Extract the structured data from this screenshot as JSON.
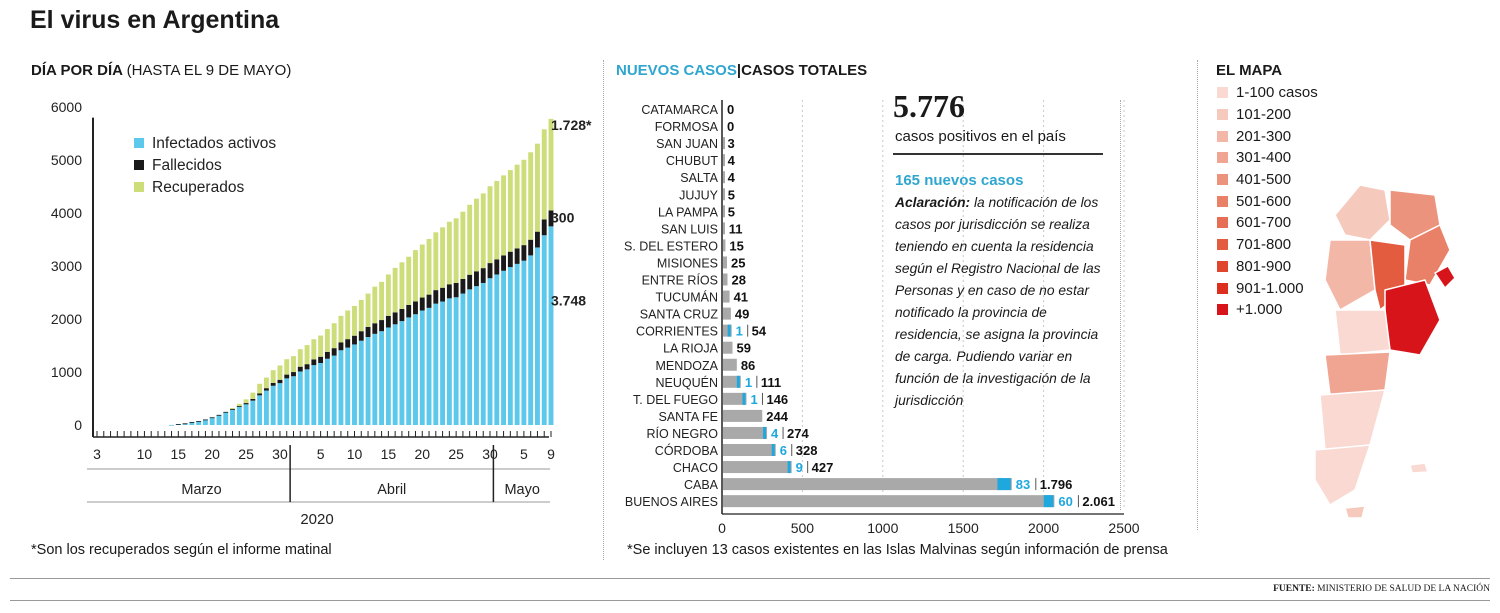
{
  "title": "El virus en Argentina",
  "panel1": {
    "title_bold": "DÍA POR DÍA",
    "title_normal": "(HASTA EL 9 DE MAYO)",
    "footnote": "*Son los recuperados según el informe matinal"
  },
  "panel2": {
    "title_new": "NUEVOS CASOS",
    "title_sep": "|",
    "title_total": "CASOS TOTALES",
    "big_number": "5.776",
    "big_label": "casos positivos en el país",
    "new_cases": "165 nuevos casos",
    "note_bold": "Aclaración:",
    "note_text": " la notificación de los casos por jurisdicción se realiza teniendo en cuenta la residencia según el Registro Nacional de las Personas y en caso de no estar notificado la provincia de residencia, se asigna la provincia de carga. Pudiendo variar en función de la investigación de la jurisdicción",
    "footnote": "*Se incluyen 13 casos existentes en las Islas Malvinas según información de prensa"
  },
  "panel3": {
    "title": "EL MAPA",
    "legend": [
      {
        "label": "1-100 casos",
        "color": "#f9d9d2"
      },
      {
        "label": "101-200",
        "color": "#f6c9bd"
      },
      {
        "label": "201-300",
        "color": "#f3b7a8"
      },
      {
        "label": "301-400",
        "color": "#efa592"
      },
      {
        "label": "401-500",
        "color": "#ec937d"
      },
      {
        "label": "501-600",
        "color": "#e98168"
      },
      {
        "label": "601-700",
        "color": "#e66e54"
      },
      {
        "label": "701-800",
        "color": "#e35c40"
      },
      {
        "label": "801-900",
        "color": "#e0452e"
      },
      {
        "label": "901-1.000",
        "color": "#dd2f1e"
      },
      {
        "label": "+1.000",
        "color": "#d8141b"
      }
    ]
  },
  "source_label": "FUENTE:",
  "source_text": "MINISTERIO DE SALUD DE LA NACIÓN",
  "colors": {
    "infected": "#5bc8ec",
    "deaths": "#1a1a1a",
    "recovered": "#cddd7a",
    "new_cases": "#1ea8de",
    "total_cases": "#a9a9a9",
    "accent": "#2fa6cf"
  },
  "chart_data": [
    {
      "type": "bar",
      "stacked": true,
      "x_start": "2020-03-03",
      "x_end": "2020-05-09",
      "x_tick_labels": [
        "3",
        "10",
        "15",
        "20",
        "25",
        "30",
        "5",
        "10",
        "15",
        "20",
        "25",
        "30",
        "5",
        "9"
      ],
      "month_labels": [
        "Marzo",
        "Abril",
        "Mayo"
      ],
      "year_label": "2020",
      "ylim": [
        0,
        6000
      ],
      "y_ticks": [
        0,
        1000,
        2000,
        3000,
        4000,
        5000,
        6000
      ],
      "series": [
        {
          "name": "Infectados activos",
          "values": [
            0,
            0,
            0,
            0,
            0,
            0,
            0,
            0,
            0,
            0,
            0,
            2,
            17,
            29,
            55,
            70,
            100,
            140,
            185,
            240,
            290,
            340,
            390,
            460,
            560,
            650,
            740,
            790,
            880,
            920,
            1010,
            1050,
            1130,
            1170,
            1250,
            1310,
            1410,
            1460,
            1520,
            1590,
            1660,
            1720,
            1770,
            1840,
            1900,
            1960,
            2030,
            2090,
            2160,
            2210,
            2290,
            2330,
            2390,
            2410,
            2480,
            2560,
            2620,
            2680,
            2770,
            2840,
            2910,
            2980,
            3040,
            3100,
            3200,
            3350,
            3580,
            3748
          ]
        },
        {
          "name": "Fallecidos",
          "values": [
            0,
            0,
            0,
            0,
            0,
            0,
            0,
            0,
            0,
            0,
            0,
            0,
            1,
            2,
            2,
            3,
            4,
            5,
            6,
            8,
            12,
            17,
            24,
            31,
            37,
            45,
            54,
            63,
            71,
            79,
            90,
            98,
            108,
            118,
            130,
            140,
            150,
            160,
            165,
            180,
            190,
            200,
            210,
            220,
            225,
            230,
            235,
            240,
            245,
            250,
            255,
            260,
            265,
            270,
            275,
            275,
            280,
            280,
            285,
            285,
            290,
            290,
            292,
            294,
            296,
            298,
            299,
            300
          ]
        },
        {
          "name": "Recuperados",
          "values": [
            0,
            0,
            0,
            0,
            0,
            0,
            0,
            0,
            0,
            0,
            0,
            0,
            0,
            0,
            0,
            0,
            0,
            0,
            0,
            0,
            20,
            40,
            70,
            120,
            180,
            200,
            240,
            270,
            290,
            300,
            330,
            360,
            380,
            400,
            430,
            470,
            500,
            540,
            560,
            590,
            630,
            690,
            720,
            780,
            840,
            880,
            910,
            970,
            1000,
            1050,
            1090,
            1140,
            1180,
            1220,
            1270,
            1320,
            1370,
            1410,
            1450,
            1480,
            1510,
            1540,
            1580,
            1610,
            1650,
            1660,
            1700,
            1728
          ]
        }
      ],
      "end_labels": {
        "recovered": "1.728*",
        "deaths": "300",
        "infected": "3.748"
      }
    },
    {
      "type": "bar",
      "orientation": "horizontal",
      "categories": [
        "CATAMARCA",
        "FORMOSA",
        "SAN JUAN",
        "CHUBUT",
        "SALTA",
        "JUJUY",
        "LA PAMPA",
        "SAN LUIS",
        "S. DEL ESTERO",
        "MISIONES",
        "ENTRE RÍOS",
        "TUCUMÁN",
        "SANTA CRUZ",
        "CORRIENTES",
        "LA RIOJA",
        "MENDOZA",
        "NEUQUÉN",
        "T. DEL FUEGO",
        "SANTA FE",
        "RÍO NEGRO",
        "CÓRDOBA",
        "CHACO",
        "CABA",
        "BUENOS AIRES"
      ],
      "series": [
        {
          "name": "NUEVOS CASOS",
          "values": [
            0,
            0,
            0,
            0,
            0,
            0,
            0,
            0,
            0,
            0,
            0,
            0,
            0,
            1,
            0,
            0,
            1,
            1,
            0,
            4,
            6,
            9,
            83,
            60
          ]
        },
        {
          "name": "CASOS TOTALES",
          "values": [
            0,
            0,
            3,
            4,
            4,
            5,
            5,
            11,
            15,
            25,
            28,
            41,
            49,
            54,
            59,
            86,
            111,
            146,
            244,
            274,
            328,
            427,
            1796,
            2061
          ]
        }
      ],
      "xlim": [
        0,
        2500
      ],
      "x_ticks": [
        0,
        500,
        1000,
        1500,
        2000,
        2500
      ]
    }
  ]
}
